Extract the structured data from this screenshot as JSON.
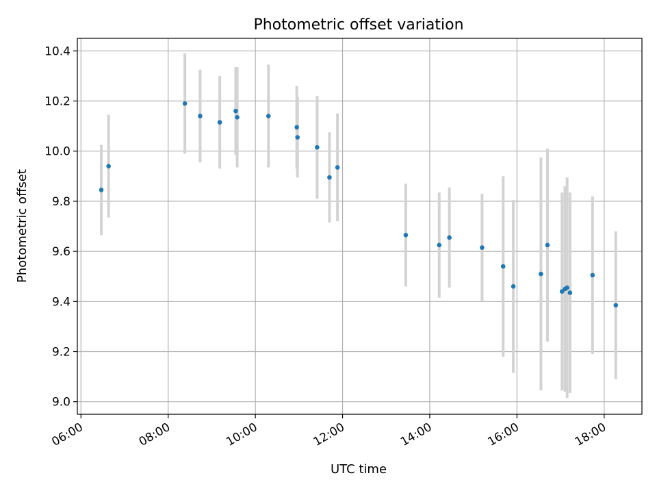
{
  "chart_data": {
    "type": "scatter",
    "title": "Photometric offset variation",
    "xlabel": "UTC time",
    "ylabel": "Photometric offset",
    "xlim": [
      "05:55",
      "18:52"
    ],
    "ylim": [
      8.95,
      10.45
    ],
    "grid": true,
    "x_ticks": [
      "06:00",
      "08:00",
      "10:00",
      "12:00",
      "14:00",
      "16:00",
      "18:00"
    ],
    "y_ticks": [
      "9.0",
      "9.2",
      "9.4",
      "9.6",
      "9.8",
      "10.0",
      "10.2",
      "10.4"
    ],
    "colors": {
      "point": "#1f77b4",
      "errorbar": "#d3d3d3",
      "grid": "#b0b0b0"
    },
    "points": [
      {
        "x": "06:28",
        "y": 9.845,
        "err": 0.18
      },
      {
        "x": "06:38",
        "y": 9.94,
        "err": 0.205
      },
      {
        "x": "08:23",
        "y": 10.19,
        "err": 0.2
      },
      {
        "x": "08:44",
        "y": 10.14,
        "err": 0.185
      },
      {
        "x": "09:11",
        "y": 10.115,
        "err": 0.185
      },
      {
        "x": "09:33",
        "y": 10.16,
        "err": 0.175
      },
      {
        "x": "09:35",
        "y": 10.135,
        "err": 0.2
      },
      {
        "x": "10:18",
        "y": 10.14,
        "err": 0.205
      },
      {
        "x": "10:57",
        "y": 10.095,
        "err": 0.165
      },
      {
        "x": "10:58",
        "y": 10.055,
        "err": 0.16
      },
      {
        "x": "11:25",
        "y": 10.015,
        "err": 0.205
      },
      {
        "x": "11:42",
        "y": 9.895,
        "err": 0.18
      },
      {
        "x": "11:53",
        "y": 9.935,
        "err": 0.215
      },
      {
        "x": "13:27",
        "y": 9.665,
        "err": 0.205
      },
      {
        "x": "14:13",
        "y": 9.625,
        "err": 0.21
      },
      {
        "x": "14:27",
        "y": 9.655,
        "err": 0.2
      },
      {
        "x": "15:12",
        "y": 9.615,
        "err": 0.215
      },
      {
        "x": "15:41",
        "y": 9.54,
        "err": 0.36
      },
      {
        "x": "15:55",
        "y": 9.46,
        "err": 0.345
      },
      {
        "x": "16:33",
        "y": 9.51,
        "err": 0.465
      },
      {
        "x": "16:42",
        "y": 9.625,
        "err": 0.385
      },
      {
        "x": "17:02",
        "y": 9.44,
        "err": 0.395
      },
      {
        "x": "17:06",
        "y": 9.45,
        "err": 0.41
      },
      {
        "x": "17:09",
        "y": 9.455,
        "err": 0.44
      },
      {
        "x": "17:13",
        "y": 9.435,
        "err": 0.4
      },
      {
        "x": "17:44",
        "y": 9.505,
        "err": 0.315
      },
      {
        "x": "18:16",
        "y": 9.385,
        "err": 0.295
      }
    ]
  }
}
